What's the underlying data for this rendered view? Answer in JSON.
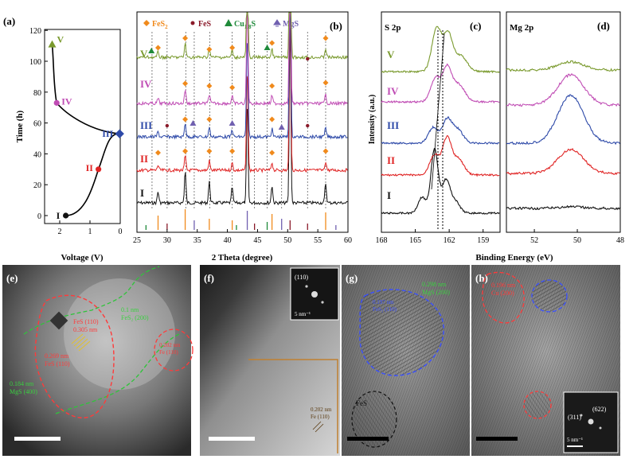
{
  "colors": {
    "stage1": "#111111",
    "stage2": "#e02424",
    "stage3": "#2d49a8",
    "stage4": "#c04cb4",
    "stage5": "#7a9a2e",
    "fes2": "#f08a1c",
    "fes": "#8a1a2a",
    "cu18s": "#1f8a3a",
    "mgs": "#7060b0",
    "fe": "#8b6b3a"
  },
  "panel_labels": {
    "a": "(a)",
    "b": "(b)",
    "c": "(c)",
    "d": "(d)",
    "e": "(e)",
    "f": "(f)",
    "g": "(g)",
    "h": "(h)"
  },
  "panel_a": {
    "ylabel": "Time (h)",
    "xlabel": "Voltage (V)",
    "yticks": [
      "0",
      "20",
      "40",
      "60",
      "80",
      "100",
      "120"
    ],
    "xticks": [
      "2",
      "1",
      "0"
    ],
    "stage_labels": [
      "I",
      "II",
      "III",
      "IV",
      "V"
    ],
    "stage_points": [
      {
        "label": "I",
        "voltage": 1.8,
        "time": 0,
        "marker": "circle"
      },
      {
        "label": "II",
        "voltage": 0.72,
        "time": 30,
        "marker": "circle"
      },
      {
        "label": "III",
        "voltage": 0.02,
        "time": 53,
        "marker": "diamond"
      },
      {
        "label": "IV",
        "voltage": 2.1,
        "time": 73,
        "marker": "circle"
      },
      {
        "label": "V",
        "voltage": 2.25,
        "time": 111,
        "marker": "triangle"
      }
    ]
  },
  "panel_b": {
    "xlabel": "2 Theta (degree)",
    "xticks": [
      "25",
      "30",
      "35",
      "40",
      "45",
      "50",
      "55",
      "60"
    ],
    "legend": [
      {
        "label": "FeS",
        "sub": "2",
        "tail": ""
      },
      {
        "label": "FeS",
        "sub": "",
        "tail": ""
      },
      {
        "label": "Cu",
        "sub": "1.8",
        "tail": "S"
      },
      {
        "label": "MgS",
        "sub": "",
        "tail": ""
      }
    ],
    "trace_labels": [
      "V",
      "IV",
      "III",
      "II",
      "I"
    ],
    "major_peaks_2theta": [
      28.5,
      33.0,
      37.0,
      40.8,
      43.3,
      47.4,
      50.4,
      56.3
    ]
  },
  "panel_c": {
    "title": "S 2p",
    "ylabel": "Intensity (a.u.)",
    "xticks": [
      "168",
      "165",
      "162",
      "159"
    ],
    "trace_labels": [
      "V",
      "IV",
      "III",
      "II",
      "I"
    ]
  },
  "panel_d": {
    "title": "Mg 2p",
    "xticks": [
      "52",
      "50",
      "48"
    ]
  },
  "shared_xlabel": "Binding Energy (eV)",
  "panel_e": {
    "labels": [
      {
        "text": "FeS (110)",
        "color": "red"
      },
      {
        "text": "0.305 nm",
        "color": "red"
      },
      {
        "text": "0.269 nm",
        "color": "red"
      },
      {
        "text": "FeS (110)",
        "color": "red"
      },
      {
        "text": "0.184 nm",
        "color": "green"
      },
      {
        "text": "MgS (400)",
        "color": "green"
      },
      {
        "text": "0.1 nm",
        "color": "green"
      },
      {
        "text": "FeS₂ (200)",
        "color": "green"
      },
      {
        "text": "0.202 nm",
        "color": "red"
      },
      {
        "text": "Fe (110)",
        "color": "red"
      }
    ]
  },
  "panel_f": {
    "fft_label": "(110)",
    "fft_scale": "5 nm⁻¹",
    "fringe_labels": [
      "0.202 nm",
      "Fe (110)"
    ]
  },
  "panel_g": {
    "labels": [
      "0.298 nm",
      "MgS (200)",
      "0.197 nm",
      "FeS₂ (110)",
      "FeS"
    ]
  },
  "panel_h": {
    "labels": [
      "0.196 nm",
      "Cu (200)"
    ],
    "fft_labels": [
      "(622)",
      "(311)"
    ],
    "fft_scale": "5 nm⁻¹"
  }
}
